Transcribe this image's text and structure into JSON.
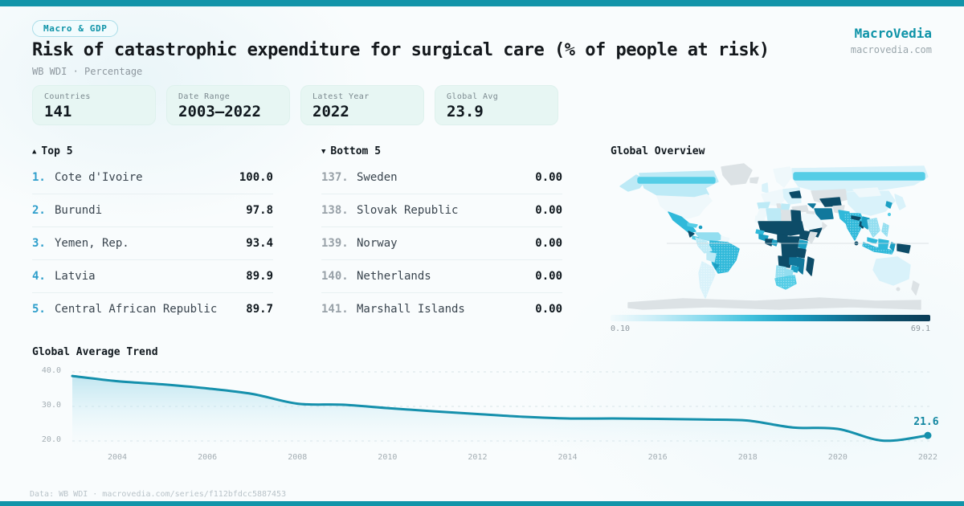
{
  "colors": {
    "accent_bar": "#1294a9",
    "brand": "#0e93a8",
    "rank_highlight": "#2d9ecb",
    "trend_line": "#1590ac",
    "card_bg": "#e7f6f3"
  },
  "header": {
    "badge": "Macro & GDP",
    "title": "Risk of catastrophic expenditure for surgical care (% of people at risk)",
    "subtitle": "WB WDI · Percentage",
    "brand": "MacroVedia",
    "domain": "macrovedia.com"
  },
  "stats": [
    {
      "label": "Countries",
      "value": "141"
    },
    {
      "label": "Date Range",
      "value": "2003—2022"
    },
    {
      "label": "Latest Year",
      "value": "2022"
    },
    {
      "label": "Global Avg",
      "value": "23.9"
    }
  ],
  "top5": {
    "icon": "▲",
    "title": "Top 5",
    "rows": [
      {
        "rank": "1.",
        "name": "Cote d'Ivoire",
        "value": "100.0"
      },
      {
        "rank": "2.",
        "name": "Burundi",
        "value": "97.8"
      },
      {
        "rank": "3.",
        "name": "Yemen, Rep.",
        "value": "93.4"
      },
      {
        "rank": "4.",
        "name": "Latvia",
        "value": "89.9"
      },
      {
        "rank": "5.",
        "name": "Central African Republic",
        "value": "89.7"
      }
    ]
  },
  "bottom5": {
    "icon": "▼",
    "title": "Bottom 5",
    "rows": [
      {
        "rank": "137.",
        "name": "Sweden",
        "value": "0.00"
      },
      {
        "rank": "138.",
        "name": "Slovak Republic",
        "value": "0.00"
      },
      {
        "rank": "139.",
        "name": "Norway",
        "value": "0.00"
      },
      {
        "rank": "140.",
        "name": "Netherlands",
        "value": "0.00"
      },
      {
        "rank": "141.",
        "name": "Marshall Islands",
        "value": "0.00"
      }
    ]
  },
  "map": {
    "title": "Global Overview",
    "legend_min": "0.10",
    "legend_max": "69.1",
    "palette": [
      "#f2fafc",
      "#c9edf7",
      "#8adbee",
      "#45c3de",
      "#1b9fc3",
      "#11789c",
      "#0d4f6b",
      "#0a3c57"
    ],
    "no_data_color": "#dce2e5"
  },
  "chart_data": {
    "type": "area",
    "title": "Global Average Trend",
    "x": [
      2003,
      2004,
      2005,
      2006,
      2007,
      2008,
      2009,
      2010,
      2011,
      2012,
      2013,
      2014,
      2015,
      2016,
      2017,
      2018,
      2019,
      2020,
      2021,
      2022
    ],
    "values": [
      38.8,
      37.3,
      36.4,
      35.2,
      33.6,
      30.8,
      30.5,
      29.5,
      28.6,
      27.8,
      27.0,
      26.5,
      26.5,
      26.4,
      26.2,
      25.9,
      23.9,
      23.5,
      20.1,
      21.6
    ],
    "x_ticks": [
      "2004",
      "2006",
      "2008",
      "2010",
      "2012",
      "2014",
      "2016",
      "2018",
      "2020",
      "2022"
    ],
    "y_ticks": [
      {
        "label": "40.0",
        "value": 40
      },
      {
        "label": "30.0",
        "value": 30
      },
      {
        "label": "20.0",
        "value": 20
      }
    ],
    "ylim": [
      18.5,
      41
    ],
    "xlabel": "",
    "ylabel": "",
    "grid": "horizontal-dashed",
    "legend": "none",
    "end_label": "21.6"
  },
  "footer": {
    "text": "Data: WB WDI · macrovedia.com/series/f112bfdcc5887453"
  }
}
